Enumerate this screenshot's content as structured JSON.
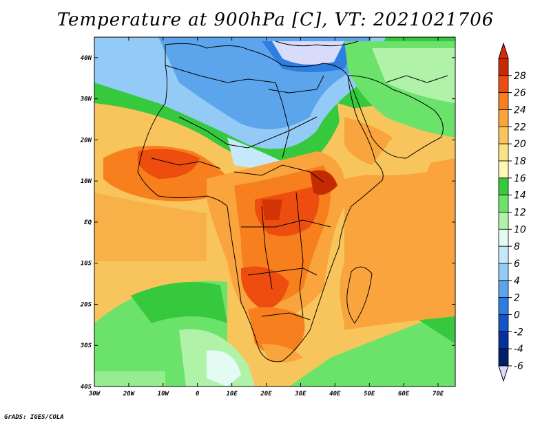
{
  "title": "Temperature at 900hPa [C], VT: 2021021706",
  "credit": "GrADS: IGES/COLA",
  "map": {
    "lon_range": [
      -30,
      75
    ],
    "lat_range": [
      -40,
      45
    ],
    "x_ticks": [
      "30W",
      "20W",
      "10W",
      "0",
      "10E",
      "20E",
      "30E",
      "40E",
      "50E",
      "60E",
      "70E"
    ],
    "y_ticks": [
      "40N",
      "30N",
      "20N",
      "10N",
      "EQ",
      "10S",
      "20S",
      "30S",
      "40S"
    ]
  },
  "colorbar": {
    "labels": [
      "28",
      "26",
      "24",
      "22",
      "20",
      "18",
      "16",
      "14",
      "12",
      "10",
      "8",
      "6",
      "4",
      "2",
      "0",
      "-2",
      "-4",
      "-6"
    ],
    "colors": [
      "#c62a03",
      "#ee4d10",
      "#f77f1e",
      "#f9a43c",
      "#f8c55d",
      "#fbe287",
      "#fdf8b2",
      "#36c93e",
      "#6be36b",
      "#b0f3a8",
      "#e3fbf2",
      "#c6e8fb",
      "#93cbf6",
      "#5ca5ec",
      "#2e7de1",
      "#1255c5",
      "#06309b",
      "#021e6b"
    ],
    "top_color": "#d92a0b",
    "bottom_color": "#d8dbfa"
  },
  "palette": {
    "sea_warm": "#f9a43c",
    "sea_mid": "#f8c55d",
    "sea_cool": "#fbe287",
    "cold_north": "#5ca5ec",
    "green": "#36c93e"
  }
}
